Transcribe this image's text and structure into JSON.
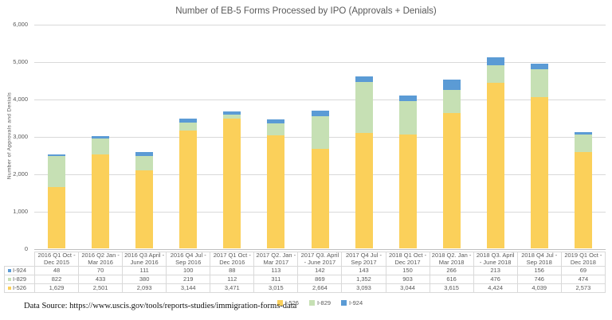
{
  "title": "Number of EB-5 Forms Processed by IPO (Approvals + Denials)",
  "y_axis_label": "Number of Approvals and Denials",
  "footer": {
    "source": "Data Source: https://www.uscis.gov/tools/reports-studies/immigration-forms-data"
  },
  "chart_data": {
    "type": "bar",
    "stacked": true,
    "title": "Number of EB-5 Forms Processed by IPO (Approvals + Denials)",
    "xlabel": "",
    "ylabel": "Number of Approvals and Denials",
    "ylim": [
      0,
      6000
    ],
    "grid": true,
    "legend_position": "bottom",
    "y_ticks": [
      "6,000",
      "5,000",
      "4,000",
      "3,000",
      "2,000",
      "1,000",
      "0"
    ],
    "categories": [
      "2016 Q1 Oct - Dec 2015",
      "2016 Q2 Jan - Mar 2016",
      "2016 Q3 April - June 2016",
      "2016 Q4 Jul - Sep 2016",
      "2017 Q1 Oct - Dec 2016",
      "2017 Q2. Jan - Mar 2017",
      "2017 Q3. April - June 2017",
      "2017 Q4 Jul - Sep 2017",
      "2018 Q1 Oct - Dec 2017",
      "2018 Q2. Jan - Mar 2018",
      "2018 Q3. April - June 2018",
      "2018 Q4 Jul - Sep 2018",
      "2019 Q1 Oct - Dec 2018"
    ],
    "series": [
      {
        "name": "I-526",
        "color": "#fbd05a",
        "values": [
          1629,
          2501,
          2093,
          3144,
          3471,
          3015,
          2664,
          3093,
          3044,
          3615,
          4424,
          4039,
          2573
        ]
      },
      {
        "name": "I-829",
        "color": "#c6e0b4",
        "values": [
          822,
          433,
          380,
          219,
          112,
          311,
          869,
          1352,
          903,
          616,
          476,
          746,
          474
        ]
      },
      {
        "name": "I-924",
        "color": "#5b9bd5",
        "values": [
          48,
          70,
          111,
          100,
          88,
          113,
          142,
          143,
          150,
          266,
          213,
          156,
          69
        ]
      }
    ],
    "legend_order": [
      "I-526",
      "I-829",
      "I-924"
    ],
    "table_row_order": [
      "I-924",
      "I-829",
      "I-526"
    ]
  }
}
